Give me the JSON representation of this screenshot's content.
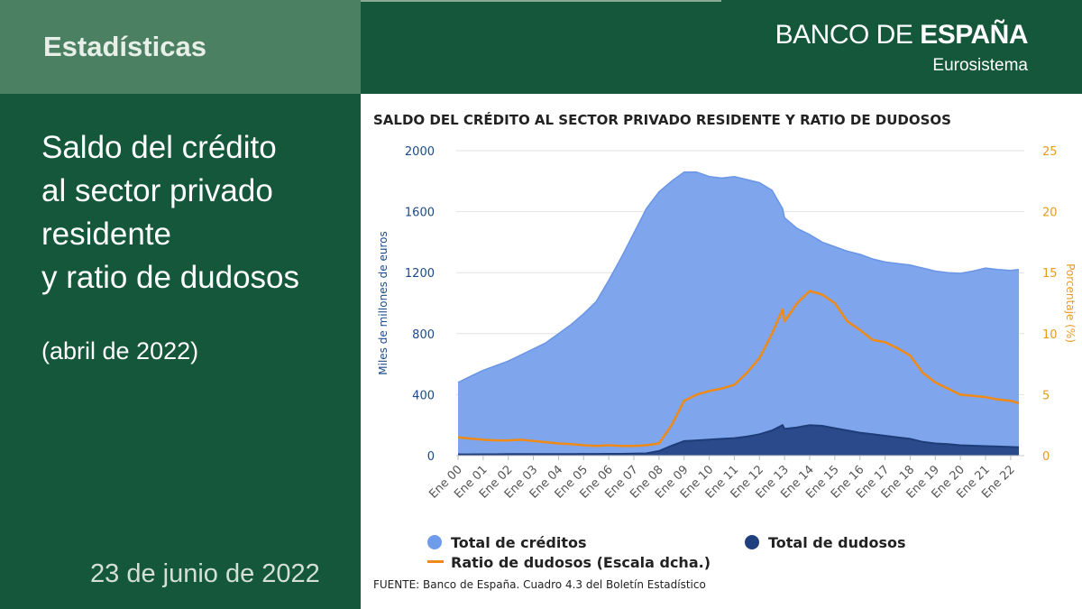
{
  "header": {
    "section": "Estadísticas",
    "brand_light": "BANCO DE ",
    "brand_bold": "ESPAÑA",
    "brand_sub": "Eurosistema"
  },
  "left": {
    "title_lines": [
      "Saldo del crédito",
      "al sector privado",
      "residente",
      "y ratio de dudosos"
    ],
    "period": "(abril de 2022)",
    "date": "23 de junio de 2022"
  },
  "colors": {
    "bg_green": "#14573a",
    "tab_green": "#4b8062",
    "credit_fill": "#7fa6ec",
    "credit_line": "#6a95e6",
    "doubtful_fill": "#2a4a8c",
    "doubtful_line": "#1e3c78",
    "ratio_line": "#ef8a17",
    "left_axis": "#1a4a8a",
    "right_axis": "#e89a1e"
  },
  "chart_data": {
    "type": "area",
    "title": "SALDO DEL CRÉDITO AL SECTOR PRIVADO RESIDENTE Y RATIO DE DUDOSOS",
    "ylabel": "Miles de millones de euros",
    "y2label": "Porcentaje (%)",
    "ylim": [
      0,
      2000
    ],
    "y2lim": [
      0,
      25
    ],
    "yticks": [
      "0",
      "400",
      "800",
      "1200",
      "1600",
      "2000"
    ],
    "y2ticks": [
      "0",
      "5",
      "10",
      "15",
      "20",
      "25"
    ],
    "categories": [
      "Ene 00",
      "Ene 01",
      "Ene 02",
      "Ene 03",
      "Ene 04",
      "Ene 05",
      "Ene 06",
      "Ene 07",
      "Ene 08",
      "Ene 09",
      "Ene 10",
      "Ene 11",
      "Ene 12",
      "Ene 13",
      "Ene 14",
      "Ene 15",
      "Ene 16",
      "Ene 17",
      "Ene 18",
      "Ene 19",
      "Ene 20",
      "Ene 21",
      "Ene 22"
    ],
    "x": [
      2000.0,
      2000.5,
      2001.0,
      2001.5,
      2002.0,
      2002.5,
      2003.0,
      2003.5,
      2004.0,
      2004.5,
      2005.0,
      2005.5,
      2006.0,
      2006.5,
      2007.0,
      2007.5,
      2008.0,
      2008.5,
      2009.0,
      2009.5,
      2010.0,
      2010.5,
      2011.0,
      2011.5,
      2012.0,
      2012.5,
      2012.92,
      2013.0,
      2013.5,
      2014.0,
      2014.5,
      2015.0,
      2015.5,
      2016.0,
      2016.5,
      2017.0,
      2017.5,
      2018.0,
      2018.5,
      2019.0,
      2019.5,
      2020.0,
      2020.5,
      2021.0,
      2021.5,
      2022.0,
      2022.33
    ],
    "series": [
      {
        "name": "Total de créditos",
        "axis": "left",
        "values": [
          480,
          520,
          560,
          590,
          620,
          660,
          700,
          740,
          800,
          860,
          930,
          1010,
          1150,
          1300,
          1460,
          1620,
          1730,
          1800,
          1860,
          1860,
          1830,
          1820,
          1830,
          1810,
          1790,
          1740,
          1620,
          1560,
          1490,
          1450,
          1400,
          1370,
          1340,
          1320,
          1290,
          1270,
          1260,
          1250,
          1230,
          1210,
          1200,
          1195,
          1210,
          1230,
          1220,
          1215,
          1220
        ]
      },
      {
        "name": "Total de dudosos",
        "axis": "left",
        "values": [
          8,
          8,
          9,
          9,
          10,
          10,
          10,
          10,
          10,
          10,
          11,
          11,
          12,
          12,
          13,
          15,
          30,
          65,
          95,
          100,
          105,
          110,
          115,
          125,
          140,
          165,
          200,
          175,
          185,
          200,
          195,
          180,
          165,
          150,
          140,
          130,
          120,
          110,
          90,
          80,
          75,
          68,
          65,
          62,
          60,
          57,
          55
        ]
      },
      {
        "name": "Ratio de dudosos (Escala dcha.)",
        "axis": "right",
        "values": [
          1.5,
          1.4,
          1.3,
          1.25,
          1.25,
          1.3,
          1.2,
          1.1,
          1.0,
          0.95,
          0.85,
          0.8,
          0.85,
          0.8,
          0.8,
          0.85,
          1.0,
          2.5,
          4.5,
          5.0,
          5.3,
          5.5,
          5.8,
          6.8,
          8.0,
          10.0,
          12.0,
          11.0,
          12.5,
          13.5,
          13.2,
          12.5,
          11.0,
          10.3,
          9.5,
          9.3,
          8.8,
          8.2,
          6.8,
          6.0,
          5.5,
          5.0,
          4.9,
          4.8,
          4.6,
          4.5,
          4.3
        ]
      }
    ],
    "legend": {
      "credit": "Total de créditos",
      "doubtful": "Total de dudosos",
      "ratio": "Ratio de dudosos (Escala dcha.)"
    },
    "source": "FUENTE: Banco de España. Cuadro 4.3 del Boletín Estadístico"
  }
}
